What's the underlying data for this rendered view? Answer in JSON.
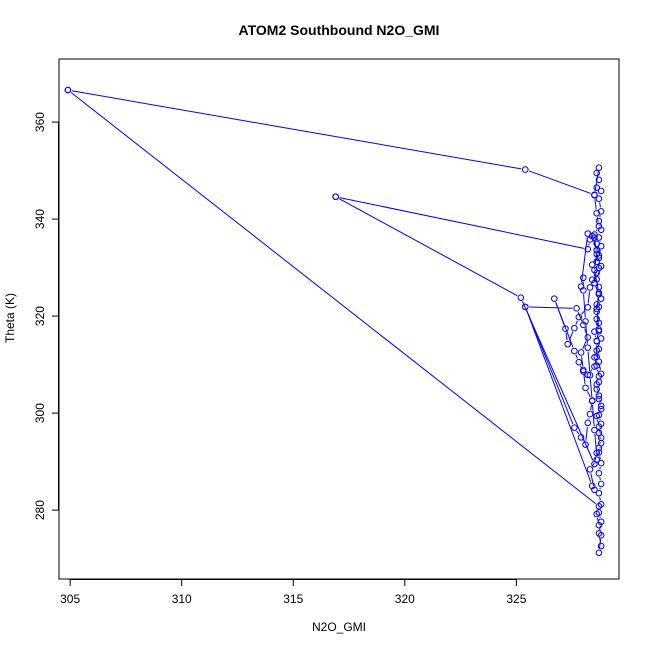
{
  "chart_data": {
    "type": "scatter",
    "title": "ATOM2 Southbound N2O_GMI",
    "xlabel": "N2O_GMI",
    "ylabel": "Theta (K)",
    "xlim": [
      304.5,
      329.6
    ],
    "ylim": [
      265.8,
      373.0
    ],
    "xticks": [
      305,
      310,
      315,
      320,
      325
    ],
    "yticks": [
      280,
      300,
      320,
      340,
      360
    ],
    "grid": false,
    "legend": "none",
    "colors": {
      "series": "#0000ff",
      "axes": "#000000"
    },
    "series": [
      {
        "mode": "lines+points",
        "points": [
          [
            304.9,
            366.6
          ],
          [
            325.4,
            350.2
          ],
          [
            328.5,
            345.0
          ],
          [
            328.6,
            346.5
          ],
          [
            328.7,
            348.1
          ],
          [
            328.6,
            349.5
          ],
          [
            328.7,
            350.6
          ],
          [
            328.5,
            344.9
          ],
          [
            328.6,
            341.2
          ],
          [
            328.7,
            338.5
          ],
          [
            328.5,
            336.8
          ],
          [
            328.6,
            334.9
          ],
          [
            328.7,
            332.5
          ],
          [
            328.4,
            330.6
          ],
          [
            328.6,
            328.9
          ],
          [
            328.5,
            326.8
          ],
          [
            328.7,
            324.5
          ],
          [
            328.6,
            322.4
          ],
          [
            328.6,
            321.5
          ],
          [
            328.7,
            318.6
          ],
          [
            328.5,
            316.8
          ],
          [
            328.6,
            314.9
          ],
          [
            328.7,
            313.2
          ],
          [
            328.5,
            311.5
          ],
          [
            328.6,
            309.8
          ],
          [
            328.7,
            307.6
          ],
          [
            328.6,
            305.9
          ],
          [
            328.7,
            303.6
          ],
          [
            328.8,
            301.5
          ],
          [
            328.7,
            299.6
          ],
          [
            328.8,
            297.8
          ],
          [
            328.7,
            295.9
          ],
          [
            328.8,
            293.8
          ],
          [
            328.7,
            291.9
          ],
          [
            328.8,
            289.7
          ],
          [
            328.7,
            287.6
          ],
          [
            328.8,
            285.4
          ],
          [
            328.7,
            283.5
          ],
          [
            328.8,
            281.2
          ],
          [
            328.7,
            279.5
          ],
          [
            328.8,
            277.6
          ],
          [
            328.7,
            275.2
          ],
          [
            328.8,
            272.6
          ],
          [
            328.7,
            271.2
          ],
          [
            328.8,
            274.8
          ],
          [
            328.7,
            276.9
          ],
          [
            328.6,
            279.2
          ],
          [
            328.7,
            280.8
          ],
          [
            304.9,
            366.6
          ]
        ]
      },
      {
        "mode": "lines+points",
        "points": [
          [
            316.9,
            344.6
          ],
          [
            325.2,
            323.8
          ],
          [
            328.5,
            289.5
          ],
          [
            328.6,
            291.8
          ],
          [
            328.5,
            296.5
          ],
          [
            328.4,
            302.5
          ],
          [
            328.3,
            307.8
          ],
          [
            328.2,
            313.5
          ],
          [
            328.1,
            318.9
          ],
          [
            328.0,
            325.3
          ],
          [
            328.0,
            327.9
          ],
          [
            327.9,
            326.1
          ],
          [
            328.2,
            337.0
          ],
          [
            328.4,
            336.5
          ],
          [
            328.6,
            333.6
          ],
          [
            328.6,
            331.2
          ],
          [
            328.7,
            329.9
          ],
          [
            328.4,
            327.5
          ],
          [
            328.3,
            325.9
          ],
          [
            328.2,
            321.8
          ],
          [
            327.8,
            319.8
          ],
          [
            327.6,
            317.5
          ],
          [
            327.3,
            314.2
          ],
          [
            327.2,
            317.4
          ],
          [
            326.7,
            323.6
          ],
          [
            327.6,
            312.8
          ],
          [
            327.8,
            310.5
          ],
          [
            328.0,
            308.6
          ],
          [
            328.2,
            307.9
          ],
          [
            328.5,
            309.6
          ],
          [
            328.6,
            311.6
          ],
          [
            328.6,
            314.8
          ],
          [
            328.7,
            317.2
          ],
          [
            328.6,
            320.9
          ],
          [
            328.7,
            324.8
          ],
          [
            328.5,
            329.5
          ],
          [
            328.6,
            332.8
          ],
          [
            328.5,
            336.2
          ],
          [
            328.3,
            335.8
          ],
          [
            328.2,
            333.8
          ],
          [
            316.9,
            344.6
          ]
        ]
      },
      {
        "mode": "lines+points",
        "points": [
          [
            325.4,
            321.9
          ],
          [
            327.6,
            297.0
          ],
          [
            327.9,
            295.0
          ],
          [
            328.1,
            293.5
          ],
          [
            328.2,
            298.0
          ],
          [
            328.3,
            299.8
          ],
          [
            328.4,
            302.6
          ],
          [
            328.1,
            305.2
          ],
          [
            328.0,
            308.9
          ],
          [
            327.9,
            312.5
          ],
          [
            328.2,
            315.6
          ],
          [
            328.0,
            318.2
          ],
          [
            327.7,
            321.6
          ],
          [
            325.4,
            321.9
          ],
          [
            328.4,
            285.0
          ],
          [
            328.5,
            284.2
          ],
          [
            328.3,
            288.4
          ],
          [
            328.6,
            290.4
          ],
          [
            328.7,
            292.8
          ],
          [
            328.8,
            294.9
          ],
          [
            328.7,
            297.2
          ],
          [
            328.6,
            299.4
          ],
          [
            328.8,
            300.8
          ],
          [
            328.7,
            302.9
          ],
          [
            328.6,
            304.9
          ],
          [
            328.7,
            306.4
          ],
          [
            328.8,
            308.1
          ],
          [
            328.7,
            310.6
          ],
          [
            328.6,
            312.9
          ],
          [
            328.8,
            315.4
          ],
          [
            328.7,
            316.9
          ],
          [
            328.6,
            319.4
          ],
          [
            328.7,
            321.9
          ],
          [
            328.8,
            323.6
          ],
          [
            328.7,
            326.0
          ],
          [
            328.6,
            327.6
          ],
          [
            328.8,
            330.3
          ],
          [
            328.7,
            332.0
          ],
          [
            328.8,
            334.4
          ],
          [
            328.7,
            336.2
          ],
          [
            328.8,
            337.8
          ],
          [
            328.7,
            339.6
          ],
          [
            328.8,
            341.6
          ],
          [
            328.7,
            344.2
          ],
          [
            328.8,
            345.8
          ]
        ]
      }
    ]
  }
}
